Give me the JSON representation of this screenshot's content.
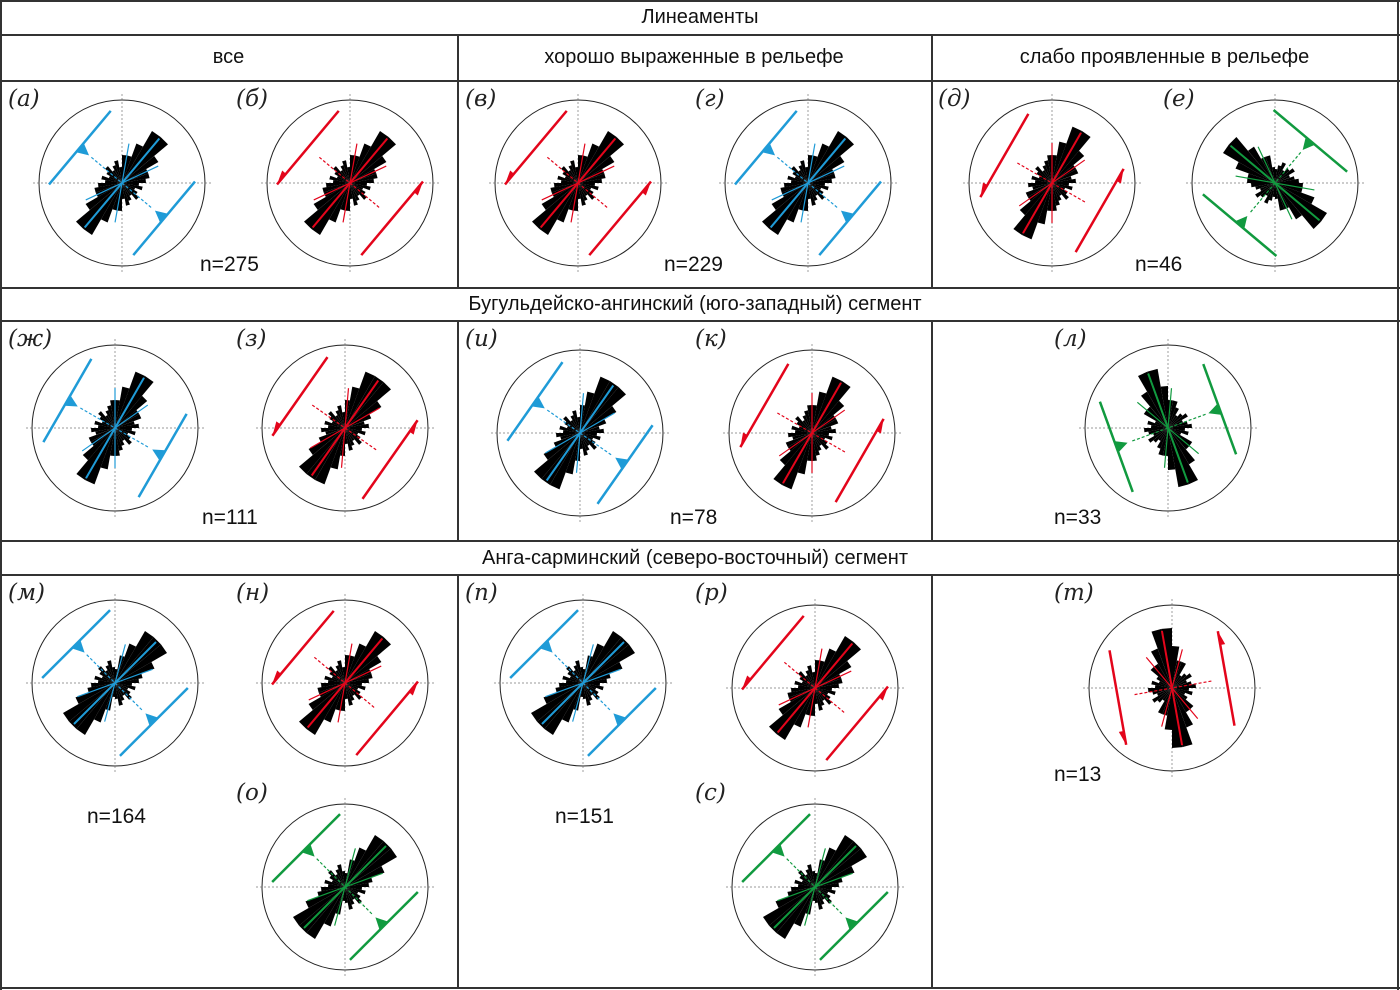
{
  "title": "Линеаменты",
  "columns": [
    "все",
    "хорошо выраженные в рельефе",
    "слабо проявленные в рельефе"
  ],
  "segments": [
    "Бугульдейско-ангинский (юго-западный) сегмент",
    "Анга-сарминский (северо-восточный) сегмент"
  ],
  "colors": {
    "blue": "#1f9bd7",
    "red": "#e3051b",
    "green": "#119a3f",
    "rose": "#000000"
  },
  "panels": [
    {
      "label": "(а)",
      "color": "blue",
      "dominant_azimuth_deg": 40
    },
    {
      "label": "(б)",
      "color": "red",
      "dominant_azimuth_deg": 40
    },
    {
      "label": "(в)",
      "color": "red",
      "dominant_azimuth_deg": 40
    },
    {
      "label": "(г)",
      "color": "blue",
      "dominant_azimuth_deg": 40
    },
    {
      "label": "(д)",
      "color": "red",
      "dominant_azimuth_deg": 30
    },
    {
      "label": "(е)",
      "color": "green",
      "dominant_azimuth_deg": 130
    },
    {
      "label": "(ж)",
      "color": "blue",
      "dominant_azimuth_deg": 30
    },
    {
      "label": "(з)",
      "color": "red",
      "dominant_azimuth_deg": 35
    },
    {
      "label": "(и)",
      "color": "blue",
      "dominant_azimuth_deg": 35
    },
    {
      "label": "(к)",
      "color": "red",
      "dominant_azimuth_deg": 30
    },
    {
      "label": "(л)",
      "color": "green",
      "dominant_azimuth_deg": 160
    },
    {
      "label": "(м)",
      "color": "blue",
      "dominant_azimuth_deg": 45
    },
    {
      "label": "(н)",
      "color": "red",
      "dominant_azimuth_deg": 40
    },
    {
      "label": "(о)",
      "color": "green",
      "dominant_azimuth_deg": 45
    },
    {
      "label": "(п)",
      "color": "blue",
      "dominant_azimuth_deg": 45
    },
    {
      "label": "(р)",
      "color": "red",
      "dominant_azimuth_deg": 40
    },
    {
      "label": "(с)",
      "color": "green",
      "dominant_azimuth_deg": 45
    },
    {
      "label": "(т)",
      "color": "red",
      "dominant_azimuth_deg": 170
    }
  ],
  "counts": [
    "n=275",
    "n=229",
    "n=46",
    "n=111",
    "n=78",
    "n=33",
    "n=164",
    "n=151",
    "n=13"
  ]
}
